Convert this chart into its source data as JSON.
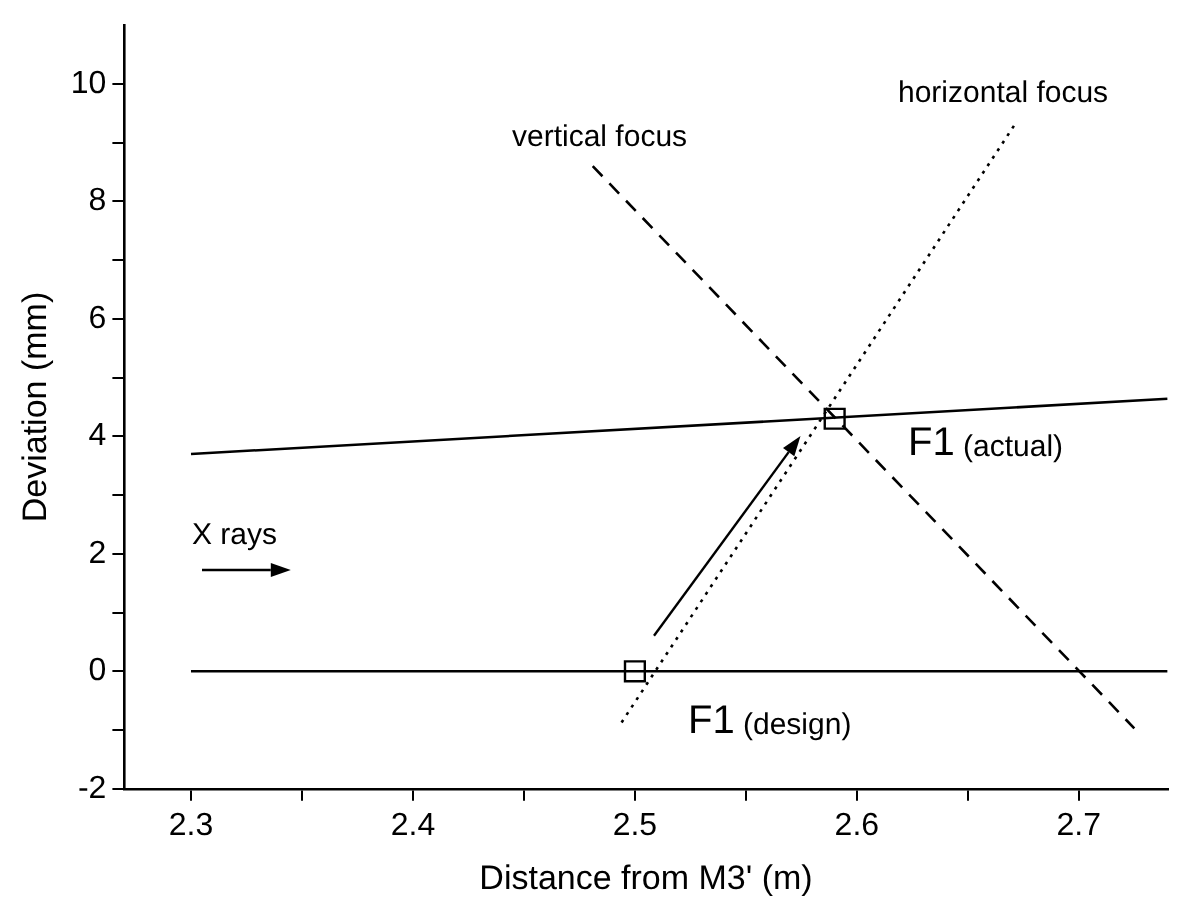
{
  "chart_data": {
    "type": "line",
    "xlabel": "Distance from M3' (m)",
    "ylabel": "Deviation (mm)",
    "xlim": [
      2.27,
      2.74
    ],
    "ylim": [
      -2,
      11
    ],
    "xticks": [
      2.3,
      {
        "value": 2.35,
        "label": null
      },
      2.4,
      {
        "value": 2.45,
        "label": null
      },
      2.5,
      {
        "value": 2.55,
        "label": null
      },
      2.6,
      {
        "value": 2.65,
        "label": null
      },
      2.7
    ],
    "yticks": [
      -2,
      {
        "value": -1,
        "label": null
      },
      0,
      {
        "value": 1,
        "label": null
      },
      2,
      {
        "value": 3,
        "label": null
      },
      4,
      {
        "value": 5,
        "label": null
      },
      6,
      {
        "value": 7,
        "label": null
      },
      8,
      {
        "value": 9,
        "label": null
      },
      10
    ],
    "grid": false,
    "legend": false,
    "marker": "none",
    "series": [
      {
        "color": "#000000",
        "line_style": "solid",
        "x": [
          2.3,
          2.74
        ],
        "values": [
          3.7,
          4.64
        ]
      },
      {
        "color": "#000000",
        "line_style": "solid",
        "x": [
          2.3,
          2.74
        ],
        "values": [
          0,
          0
        ]
      },
      {
        "color": "#000000",
        "line_style": "dashed",
        "x": [
          2.481,
          2.725
        ],
        "values": [
          8.6,
          -0.97
        ]
      },
      {
        "color": "#000000",
        "line_style": "dotted",
        "x": [
          2.494,
          2.671
        ],
        "values": [
          -0.87,
          9.3
        ]
      },
      {
        "type": "scatter",
        "color": "#000000",
        "marker": "square",
        "x": [
          2.5,
          2.59
        ],
        "values": [
          0,
          4.3
        ]
      }
    ],
    "annotations": [
      "vertical focus",
      "horizontal focus",
      "F1 (actual)",
      "F1 (design)",
      "X rays"
    ]
  }
}
